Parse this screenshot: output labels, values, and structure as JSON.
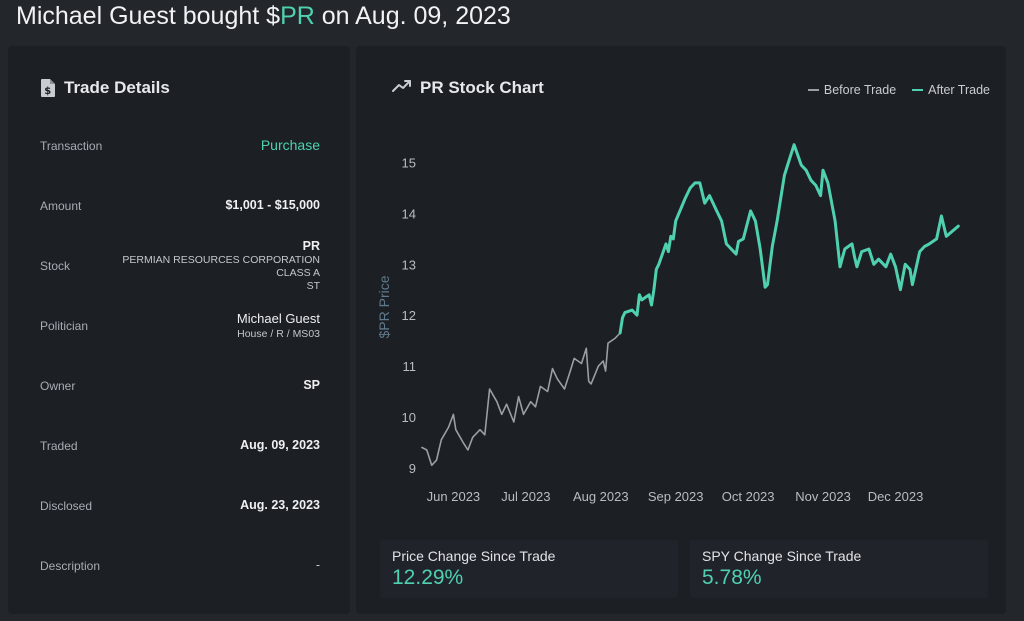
{
  "header": {
    "prefix": "Michael Guest bought $",
    "ticker": "PR",
    "suffix": " on Aug. 09, 2023"
  },
  "trade_details": {
    "title": "Trade Details",
    "icon": "file-dollar-icon",
    "transaction_label": "Transaction",
    "transaction_value": "Purchase",
    "amount_label": "Amount",
    "amount_value": "$1,001 - $15,000",
    "stock_label": "Stock",
    "stock_ticker": "PR",
    "stock_name_1": "PERMIAN RESOURCES CORPORATION",
    "stock_name_2": "CLASS A",
    "stock_name_3": "ST",
    "politician_label": "Politician",
    "politician_name": "Michael Guest",
    "politician_sub": "House / R / MS03",
    "owner_label": "Owner",
    "owner_value": "SP",
    "traded_label": "Traded",
    "traded_value": "Aug. 09, 2023",
    "disclosed_label": "Disclosed",
    "disclosed_value": "Aug. 23, 2023",
    "description_label": "Description",
    "description_value": "-"
  },
  "chart_panel": {
    "title": "PR Stock Chart",
    "icon": "trending-up-icon",
    "legend_before": "Before Trade",
    "legend_after": "After Trade"
  },
  "stats": {
    "price_change_label": "Price Change Since Trade",
    "price_change_value": "12.29%",
    "spy_change_label": "SPY Change Since Trade",
    "spy_change_value": "5.78%"
  },
  "colors": {
    "before": "#9a9ea5",
    "after": "#4fd1b0",
    "accent": "#4fd1b0"
  },
  "chart_data": {
    "type": "line",
    "ylabel": "$PR Price",
    "ylim": [
      8.8,
      15.6
    ],
    "yticks": [
      9,
      10,
      11,
      12,
      13,
      14,
      15
    ],
    "xticks": [
      {
        "label": "Jun 2023",
        "date": "2023-06-01"
      },
      {
        "label": "Jul 2023",
        "date": "2023-07-01"
      },
      {
        "label": "Aug 2023",
        "date": "2023-08-01"
      },
      {
        "label": "Sep 2023",
        "date": "2023-09-01"
      },
      {
        "label": "Oct 2023",
        "date": "2023-10-01"
      },
      {
        "label": "Nov 2023",
        "date": "2023-11-01"
      },
      {
        "label": "Dec 2023",
        "date": "2023-12-01"
      }
    ],
    "xlim": [
      "2023-05-19",
      "2023-12-31"
    ],
    "series": [
      {
        "name": "Before Trade",
        "points": [
          [
            "2023-05-19",
            9.4
          ],
          [
            "2023-05-21",
            9.35
          ],
          [
            "2023-05-23",
            9.05
          ],
          [
            "2023-05-25",
            9.15
          ],
          [
            "2023-05-27",
            9.55
          ],
          [
            "2023-05-30",
            9.8
          ],
          [
            "2023-06-01",
            10.05
          ],
          [
            "2023-06-02",
            9.75
          ],
          [
            "2023-06-05",
            9.5
          ],
          [
            "2023-06-07",
            9.35
          ],
          [
            "2023-06-09",
            9.6
          ],
          [
            "2023-06-12",
            9.75
          ],
          [
            "2023-06-14",
            9.65
          ],
          [
            "2023-06-16",
            10.55
          ],
          [
            "2023-06-19",
            10.3
          ],
          [
            "2023-06-21",
            10.05
          ],
          [
            "2023-06-23",
            10.25
          ],
          [
            "2023-06-26",
            9.9
          ],
          [
            "2023-06-28",
            10.4
          ],
          [
            "2023-06-30",
            10.05
          ],
          [
            "2023-07-03",
            10.3
          ],
          [
            "2023-07-05",
            10.2
          ],
          [
            "2023-07-07",
            10.6
          ],
          [
            "2023-07-10",
            10.5
          ],
          [
            "2023-07-12",
            10.95
          ],
          [
            "2023-07-14",
            10.75
          ],
          [
            "2023-07-17",
            10.55
          ],
          [
            "2023-07-19",
            10.85
          ],
          [
            "2023-07-21",
            11.15
          ],
          [
            "2023-07-24",
            11.05
          ],
          [
            "2023-07-26",
            11.35
          ],
          [
            "2023-07-27",
            10.7
          ],
          [
            "2023-07-28",
            10.65
          ],
          [
            "2023-07-31",
            11.0
          ],
          [
            "2023-08-02",
            11.1
          ],
          [
            "2023-08-03",
            10.9
          ],
          [
            "2023-08-04",
            11.45
          ],
          [
            "2023-08-07",
            11.55
          ],
          [
            "2023-08-09",
            11.65
          ]
        ]
      },
      {
        "name": "After Trade",
        "points": [
          [
            "2023-08-09",
            11.65
          ],
          [
            "2023-08-10",
            11.95
          ],
          [
            "2023-08-11",
            12.05
          ],
          [
            "2023-08-14",
            12.1
          ],
          [
            "2023-08-16",
            12.0
          ],
          [
            "2023-08-17",
            12.4
          ],
          [
            "2023-08-18",
            12.3
          ],
          [
            "2023-08-21",
            12.4
          ],
          [
            "2023-08-22",
            12.2
          ],
          [
            "2023-08-23",
            12.5
          ],
          [
            "2023-08-24",
            12.9
          ],
          [
            "2023-08-25",
            13.0
          ],
          [
            "2023-08-28",
            13.4
          ],
          [
            "2023-08-29",
            13.25
          ],
          [
            "2023-08-30",
            13.55
          ],
          [
            "2023-08-31",
            13.5
          ],
          [
            "2023-09-01",
            13.85
          ],
          [
            "2023-09-05",
            14.3
          ],
          [
            "2023-09-07",
            14.5
          ],
          [
            "2023-09-09",
            14.6
          ],
          [
            "2023-09-11",
            14.6
          ],
          [
            "2023-09-13",
            14.2
          ],
          [
            "2023-09-15",
            14.35
          ],
          [
            "2023-09-18",
            14.05
          ],
          [
            "2023-09-20",
            13.85
          ],
          [
            "2023-09-22",
            13.4
          ],
          [
            "2023-09-25",
            13.25
          ],
          [
            "2023-09-26",
            13.2
          ],
          [
            "2023-09-27",
            13.45
          ],
          [
            "2023-09-29",
            13.5
          ],
          [
            "2023-10-02",
            14.05
          ],
          [
            "2023-10-04",
            13.85
          ],
          [
            "2023-10-06",
            13.3
          ],
          [
            "2023-10-08",
            12.55
          ],
          [
            "2023-10-09",
            12.6
          ],
          [
            "2023-10-11",
            13.35
          ],
          [
            "2023-10-13",
            13.85
          ],
          [
            "2023-10-16",
            14.75
          ],
          [
            "2023-10-18",
            15.05
          ],
          [
            "2023-10-20",
            15.35
          ],
          [
            "2023-10-23",
            14.95
          ],
          [
            "2023-10-25",
            14.85
          ],
          [
            "2023-10-27",
            14.65
          ],
          [
            "2023-10-29",
            14.55
          ],
          [
            "2023-10-31",
            14.35
          ],
          [
            "2023-11-01",
            14.85
          ],
          [
            "2023-11-03",
            14.6
          ],
          [
            "2023-11-06",
            13.85
          ],
          [
            "2023-11-08",
            12.95
          ],
          [
            "2023-11-10",
            13.3
          ],
          [
            "2023-11-13",
            13.4
          ],
          [
            "2023-11-14",
            13.15
          ],
          [
            "2023-11-15",
            12.95
          ],
          [
            "2023-11-17",
            13.25
          ],
          [
            "2023-11-20",
            13.3
          ],
          [
            "2023-11-22",
            13.0
          ],
          [
            "2023-11-24",
            13.1
          ],
          [
            "2023-11-27",
            12.95
          ],
          [
            "2023-11-29",
            13.2
          ],
          [
            "2023-12-01",
            12.95
          ],
          [
            "2023-12-03",
            12.5
          ],
          [
            "2023-12-05",
            13.0
          ],
          [
            "2023-12-07",
            12.9
          ],
          [
            "2023-12-08",
            12.6
          ],
          [
            "2023-12-11",
            13.25
          ],
          [
            "2023-12-13",
            13.35
          ],
          [
            "2023-12-15",
            13.4
          ],
          [
            "2023-12-18",
            13.5
          ],
          [
            "2023-12-20",
            13.95
          ],
          [
            "2023-12-22",
            13.55
          ],
          [
            "2023-12-27",
            13.75
          ]
        ]
      }
    ]
  }
}
